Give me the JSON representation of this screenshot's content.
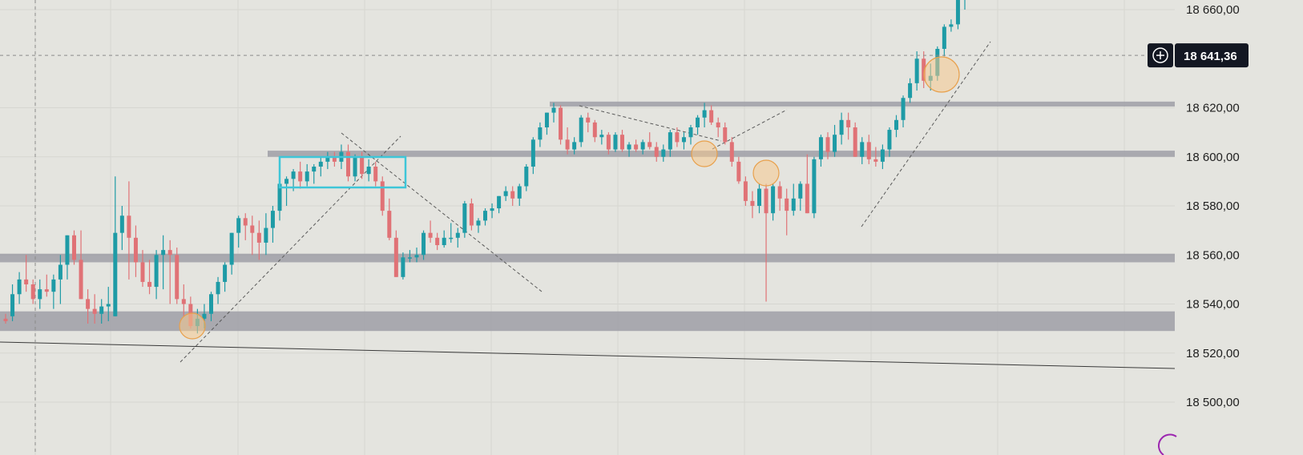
{
  "chart_data": {
    "type": "candlestick",
    "ylim": [
      18495,
      18665
    ],
    "y_ticks": [
      "18 660,00",
      "18 620,00",
      "18 600,00",
      "18 580,00",
      "18 560,00",
      "18 540,00",
      "18 520,00",
      "18 500,00"
    ],
    "y_tick_values": [
      18660,
      18620,
      18600,
      18580,
      18560,
      18540,
      18520,
      18500
    ],
    "crosshair": {
      "price": 18641.36,
      "label": "18 641,36"
    },
    "colors": {
      "up": "#1e9ba6",
      "down": "#e07276",
      "zone": "#9a9aa2",
      "box": "#3ec6d8",
      "circle_fill": "#f5c98e",
      "circle_stroke": "#e8a04c",
      "background": "#e4e4df",
      "label_bg": "#131722"
    },
    "grid": true,
    "support_resistance_zones": [
      {
        "from": 18620.5,
        "to": 18622.5
      },
      {
        "from": 18600,
        "to": 18602.5
      },
      {
        "from": 18557,
        "to": 18560.5
      },
      {
        "from": 18529,
        "to": 18537
      }
    ],
    "candles": [
      [
        18534,
        18536,
        18532,
        18533
      ],
      [
        18535,
        18548,
        18533,
        18544
      ],
      [
        18544,
        18553,
        18540,
        18550
      ],
      [
        18550,
        18560,
        18545,
        18548
      ],
      [
        18548,
        18550,
        18540,
        18542
      ],
      [
        18542,
        18550,
        18538,
        18546
      ],
      [
        18546,
        18552,
        18543,
        18545
      ],
      [
        18545,
        18552,
        18538,
        18550
      ],
      [
        18550,
        18560,
        18540,
        18556
      ],
      [
        18556,
        18568,
        18550,
        18568
      ],
      [
        18568,
        18570,
        18556,
        18558
      ],
      [
        18558,
        18570,
        18542,
        18542
      ],
      [
        18542,
        18546,
        18532,
        18538
      ],
      [
        18538,
        18544,
        18532,
        18536
      ],
      [
        18536,
        18542,
        18532,
        18539
      ],
      [
        18539,
        18547,
        18533,
        18540
      ],
      [
        18535,
        18592,
        18535,
        18569
      ],
      [
        18569,
        18580,
        18562,
        18576
      ],
      [
        18576,
        18590,
        18550,
        18567
      ],
      [
        18567,
        18572,
        18551,
        18557
      ],
      [
        18557,
        18562,
        18547,
        18549
      ],
      [
        18549,
        18558,
        18544,
        18547
      ],
      [
        18547,
        18562,
        18542,
        18560
      ],
      [
        18560,
        18568,
        18546,
        18562
      ],
      [
        18562,
        18566,
        18540,
        18560
      ],
      [
        18560,
        18563,
        18540,
        18542
      ],
      [
        18542,
        18548,
        18535,
        18540
      ],
      [
        18540,
        18543,
        18530,
        18531
      ],
      [
        18531,
        18538,
        18528,
        18534
      ],
      [
        18534,
        18540,
        18530,
        18536
      ],
      [
        18536,
        18545,
        18533,
        18544
      ],
      [
        18544,
        18551,
        18540,
        18549
      ],
      [
        18549,
        18557,
        18545,
        18556
      ],
      [
        18556,
        18569,
        18552,
        18569
      ],
      [
        18569,
        18576,
        18563,
        18575
      ],
      [
        18575,
        18577,
        18566,
        18572
      ],
      [
        18572,
        18576,
        18560,
        18569
      ],
      [
        18569,
        18574,
        18558,
        18565
      ],
      [
        18565,
        18577,
        18560,
        18571
      ],
      [
        18571,
        18580,
        18565,
        18578
      ],
      [
        18578,
        18589,
        18574,
        18589
      ],
      [
        18589,
        18592,
        18580,
        18591
      ],
      [
        18591,
        18595,
        18586,
        18594
      ],
      [
        18594,
        18598,
        18587,
        18590
      ],
      [
        18590,
        18597,
        18588,
        18594
      ],
      [
        18594,
        18597,
        18589,
        18596
      ],
      [
        18596,
        18600,
        18592,
        18598
      ],
      [
        18598,
        18602,
        18595,
        18600
      ],
      [
        18600,
        18602,
        18596,
        18598
      ],
      [
        18598,
        18605,
        18595,
        18602
      ],
      [
        18602,
        18605,
        18590,
        18592
      ],
      [
        18592,
        18601,
        18590,
        18600
      ],
      [
        18600,
        18602,
        18591,
        18593
      ],
      [
        18593,
        18599,
        18590,
        18596
      ],
      [
        18596,
        18598,
        18588,
        18590
      ],
      [
        18590,
        18592,
        18576,
        18578
      ],
      [
        18578,
        18583,
        18566,
        18567
      ],
      [
        18567,
        18570,
        18551,
        18551
      ],
      [
        18551,
        18561,
        18550,
        18559
      ],
      [
        18559,
        18562,
        18557,
        18559
      ],
      [
        18559,
        18563,
        18557,
        18560
      ],
      [
        18560,
        18570,
        18558,
        18569
      ],
      [
        18569,
        18574,
        18565,
        18567
      ],
      [
        18567,
        18569,
        18562,
        18564
      ],
      [
        18564,
        18570,
        18563,
        18567
      ],
      [
        18567,
        18573,
        18565,
        18567
      ],
      [
        18567,
        18571,
        18563,
        18569
      ],
      [
        18569,
        18582,
        18567,
        18581
      ],
      [
        18581,
        18583,
        18570,
        18572
      ],
      [
        18572,
        18575,
        18569,
        18574
      ],
      [
        18574,
        18579,
        18572,
        18578
      ],
      [
        18578,
        18581,
        18575,
        18579
      ],
      [
        18579,
        18584,
        18577,
        18584
      ],
      [
        18584,
        18588,
        18582,
        18586
      ],
      [
        18586,
        18588,
        18580,
        18583
      ],
      [
        18583,
        18589,
        18580,
        18588
      ],
      [
        18588,
        18597,
        18586,
        18596
      ],
      [
        18596,
        18608,
        18593,
        18607
      ],
      [
        18607,
        18614,
        18604,
        18612
      ],
      [
        18612,
        18618,
        18609,
        18618
      ],
      [
        18618,
        18622,
        18614,
        18620
      ],
      [
        18620,
        18621,
        18605,
        18607
      ],
      [
        18607,
        18612,
        18601,
        18603
      ],
      [
        18603,
        18608,
        18601,
        18606
      ],
      [
        18606,
        18617,
        18604,
        18616
      ],
      [
        18616,
        18618,
        18610,
        18614
      ],
      [
        18614,
        18615,
        18606,
        18608
      ],
      [
        18608,
        18611,
        18605,
        18609
      ],
      [
        18609,
        18610,
        18601,
        18603
      ],
      [
        18603,
        18610,
        18602,
        18609
      ],
      [
        18609,
        18611,
        18602,
        18603
      ],
      [
        18603,
        18606,
        18600,
        18605
      ],
      [
        18605,
        18607,
        18602,
        18603
      ],
      [
        18603,
        18607,
        18601,
        18606
      ],
      [
        18606,
        18610,
        18603,
        18604
      ],
      [
        18604,
        18606,
        18598,
        18600
      ],
      [
        18600,
        18605,
        18598,
        18603
      ],
      [
        18603,
        18611,
        18600,
        18610
      ],
      [
        18610,
        18612,
        18604,
        18606
      ],
      [
        18606,
        18610,
        18603,
        18608
      ],
      [
        18608,
        18613,
        18605,
        18612
      ],
      [
        18612,
        18617,
        18609,
        18616
      ],
      [
        18616,
        18622,
        18612,
        18619
      ],
      [
        18619,
        18621,
        18613,
        18614
      ],
      [
        18614,
        18616,
        18608,
        18612
      ],
      [
        18612,
        18614,
        18605,
        18606
      ],
      [
        18606,
        18608,
        18596,
        18598
      ],
      [
        18598,
        18600,
        18589,
        18590
      ],
      [
        18590,
        18592,
        18580,
        18582
      ],
      [
        18582,
        18586,
        18575,
        18580
      ],
      [
        18580,
        18589,
        18577,
        18587
      ],
      [
        18587,
        18589,
        18541,
        18577
      ],
      [
        18577,
        18589,
        18574,
        18588
      ],
      [
        18588,
        18590,
        18578,
        18583
      ],
      [
        18583,
        18587,
        18568,
        18578
      ],
      [
        18578,
        18589,
        18576,
        18583
      ],
      [
        18583,
        18590,
        18578,
        18589
      ],
      [
        18589,
        18601,
        18577,
        18577
      ],
      [
        18577,
        18600,
        18575,
        18599
      ],
      [
        18599,
        18609,
        18596,
        18608
      ],
      [
        18608,
        18610,
        18599,
        18602
      ],
      [
        18602,
        18613,
        18600,
        18609
      ],
      [
        18609,
        18618,
        18605,
        18615
      ],
      [
        18615,
        18618,
        18607,
        18612
      ],
      [
        18612,
        18614,
        18600,
        18600
      ],
      [
        18600,
        18608,
        18597,
        18606
      ],
      [
        18606,
        18609,
        18597,
        18599
      ],
      [
        18599,
        18604,
        18596,
        18598
      ],
      [
        18598,
        18605,
        18595,
        18603
      ],
      [
        18603,
        18612,
        18600,
        18611
      ],
      [
        18611,
        18617,
        18608,
        18615
      ],
      [
        18615,
        18625,
        18612,
        18624
      ],
      [
        18624,
        18632,
        18622,
        18630
      ],
      [
        18630,
        18643,
        18627,
        18640
      ],
      [
        18640,
        18643,
        18628,
        18631
      ],
      [
        18631,
        18638,
        18627,
        18633
      ],
      [
        18633,
        18645,
        18631,
        18644
      ],
      [
        18644,
        18654,
        18641,
        18653
      ],
      [
        18653,
        18656,
        18651,
        18654
      ],
      [
        18654,
        18664,
        18652,
        18664
      ],
      [
        18664,
        18666,
        18660,
        18665
      ]
    ]
  }
}
